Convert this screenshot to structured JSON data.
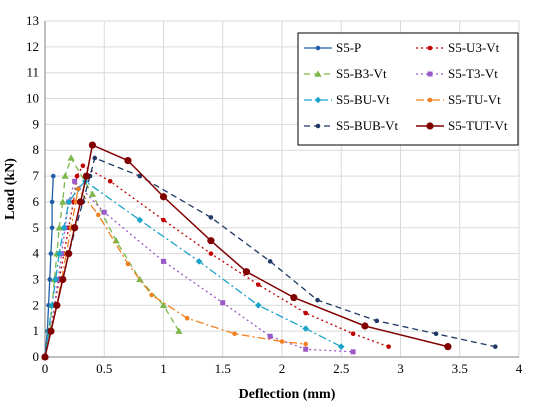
{
  "chart_data": {
    "type": "line",
    "xlabel": "Deflection (mm)",
    "ylabel": "Load (kN)",
    "xlim": [
      0,
      4
    ],
    "ylim": [
      0,
      13
    ],
    "x_ticks": [
      "0",
      "0.5",
      "1",
      "1.5",
      "2",
      "2.5",
      "3",
      "3.5",
      "4"
    ],
    "y_ticks": [
      "0",
      "1",
      "2",
      "3",
      "4",
      "5",
      "6",
      "7",
      "8",
      "9",
      "10",
      "11",
      "12",
      "13"
    ],
    "grid": true,
    "legend_position": "top-right",
    "series": [
      {
        "name": "S5-P",
        "color": "#1f5fa8",
        "dash": "solid",
        "marker": "circle",
        "points": [
          [
            0,
            0
          ],
          [
            0.02,
            1
          ],
          [
            0.03,
            2
          ],
          [
            0.04,
            3
          ],
          [
            0.05,
            4
          ],
          [
            0.06,
            5
          ],
          [
            0.06,
            6
          ],
          [
            0.07,
            7
          ]
        ]
      },
      {
        "name": "S5-U3-Vt",
        "color": "#c00000",
        "dash": "dot",
        "marker": "circle",
        "points": [
          [
            0,
            0
          ],
          [
            0.05,
            1
          ],
          [
            0.08,
            2
          ],
          [
            0.12,
            3
          ],
          [
            0.16,
            4
          ],
          [
            0.2,
            5
          ],
          [
            0.24,
            6
          ],
          [
            0.27,
            7
          ],
          [
            0.32,
            7.4
          ],
          [
            0.55,
            6.8
          ],
          [
            1.0,
            5.3
          ],
          [
            1.4,
            4.0
          ],
          [
            1.8,
            2.8
          ],
          [
            2.2,
            1.7
          ],
          [
            2.6,
            0.9
          ],
          [
            2.9,
            0.4
          ]
        ]
      },
      {
        "name": "S5-B3-Vt",
        "color": "#7ab648",
        "dash": "dash",
        "marker": "triangle",
        "points": [
          [
            0,
            0
          ],
          [
            0.04,
            1
          ],
          [
            0.06,
            2
          ],
          [
            0.08,
            3
          ],
          [
            0.1,
            4
          ],
          [
            0.12,
            5
          ],
          [
            0.15,
            6
          ],
          [
            0.17,
            7
          ],
          [
            0.22,
            7.7
          ],
          [
            0.4,
            6.3
          ],
          [
            0.6,
            4.5
          ],
          [
            0.8,
            3.0
          ],
          [
            1.0,
            2.0
          ],
          [
            1.13,
            1.0
          ]
        ]
      },
      {
        "name": "S5-T3-Vt",
        "color": "#9b59c7",
        "dash": "dot",
        "marker": "square",
        "points": [
          [
            0,
            0
          ],
          [
            0.05,
            1
          ],
          [
            0.08,
            2
          ],
          [
            0.11,
            3
          ],
          [
            0.14,
            4
          ],
          [
            0.17,
            5
          ],
          [
            0.2,
            6
          ],
          [
            0.25,
            6.8
          ],
          [
            0.5,
            5.6
          ],
          [
            1.0,
            3.7
          ],
          [
            1.5,
            2.1
          ],
          [
            1.9,
            0.8
          ],
          [
            2.2,
            0.3
          ],
          [
            2.6,
            0.2
          ]
        ]
      },
      {
        "name": "S5-BU-Vt",
        "color": "#1aa3c9",
        "dash": "dashdot",
        "marker": "diamond",
        "points": [
          [
            0,
            0
          ],
          [
            0.03,
            1
          ],
          [
            0.06,
            2
          ],
          [
            0.09,
            3
          ],
          [
            0.12,
            4
          ],
          [
            0.16,
            5
          ],
          [
            0.2,
            6
          ],
          [
            0.28,
            6.5
          ],
          [
            0.34,
            6.8
          ],
          [
            0.8,
            5.3
          ],
          [
            1.3,
            3.7
          ],
          [
            1.8,
            2.0
          ],
          [
            2.2,
            1.1
          ],
          [
            2.5,
            0.4
          ]
        ]
      },
      {
        "name": "S5-TU-Vt",
        "color": "#f08020",
        "dash": "dashdot",
        "marker": "circle",
        "points": [
          [
            0,
            0
          ],
          [
            0.05,
            1
          ],
          [
            0.1,
            2
          ],
          [
            0.14,
            3
          ],
          [
            0.18,
            4
          ],
          [
            0.22,
            5
          ],
          [
            0.26,
            6
          ],
          [
            0.28,
            6.5
          ],
          [
            0.45,
            5.5
          ],
          [
            0.7,
            3.6
          ],
          [
            0.9,
            2.4
          ],
          [
            1.2,
            1.5
          ],
          [
            1.6,
            0.9
          ],
          [
            2.0,
            0.6
          ],
          [
            2.2,
            0.5
          ]
        ]
      },
      {
        "name": "S5-BUB-Vt",
        "color": "#1f3864",
        "dash": "dash",
        "marker": "circle",
        "points": [
          [
            0,
            0
          ],
          [
            0.05,
            1
          ],
          [
            0.1,
            2
          ],
          [
            0.15,
            3
          ],
          [
            0.2,
            4
          ],
          [
            0.26,
            5
          ],
          [
            0.32,
            6
          ],
          [
            0.38,
            7
          ],
          [
            0.42,
            7.7
          ],
          [
            0.8,
            7.0
          ],
          [
            1.4,
            5.4
          ],
          [
            1.9,
            3.7
          ],
          [
            2.3,
            2.2
          ],
          [
            2.8,
            1.4
          ],
          [
            3.3,
            0.9
          ],
          [
            3.8,
            0.4
          ]
        ]
      },
      {
        "name": "S5-TUT-Vt",
        "color": "#800000",
        "dash": "solid",
        "marker": "circle",
        "marker_large": true,
        "points": [
          [
            0,
            0
          ],
          [
            0.05,
            1
          ],
          [
            0.1,
            2
          ],
          [
            0.15,
            3
          ],
          [
            0.2,
            4
          ],
          [
            0.25,
            5
          ],
          [
            0.3,
            6
          ],
          [
            0.35,
            7
          ],
          [
            0.4,
            8.2
          ],
          [
            0.7,
            7.6
          ],
          [
            1.0,
            6.2
          ],
          [
            1.4,
            4.5
          ],
          [
            1.7,
            3.3
          ],
          [
            2.1,
            2.3
          ],
          [
            2.7,
            1.2
          ],
          [
            3.4,
            0.4
          ]
        ]
      }
    ]
  }
}
